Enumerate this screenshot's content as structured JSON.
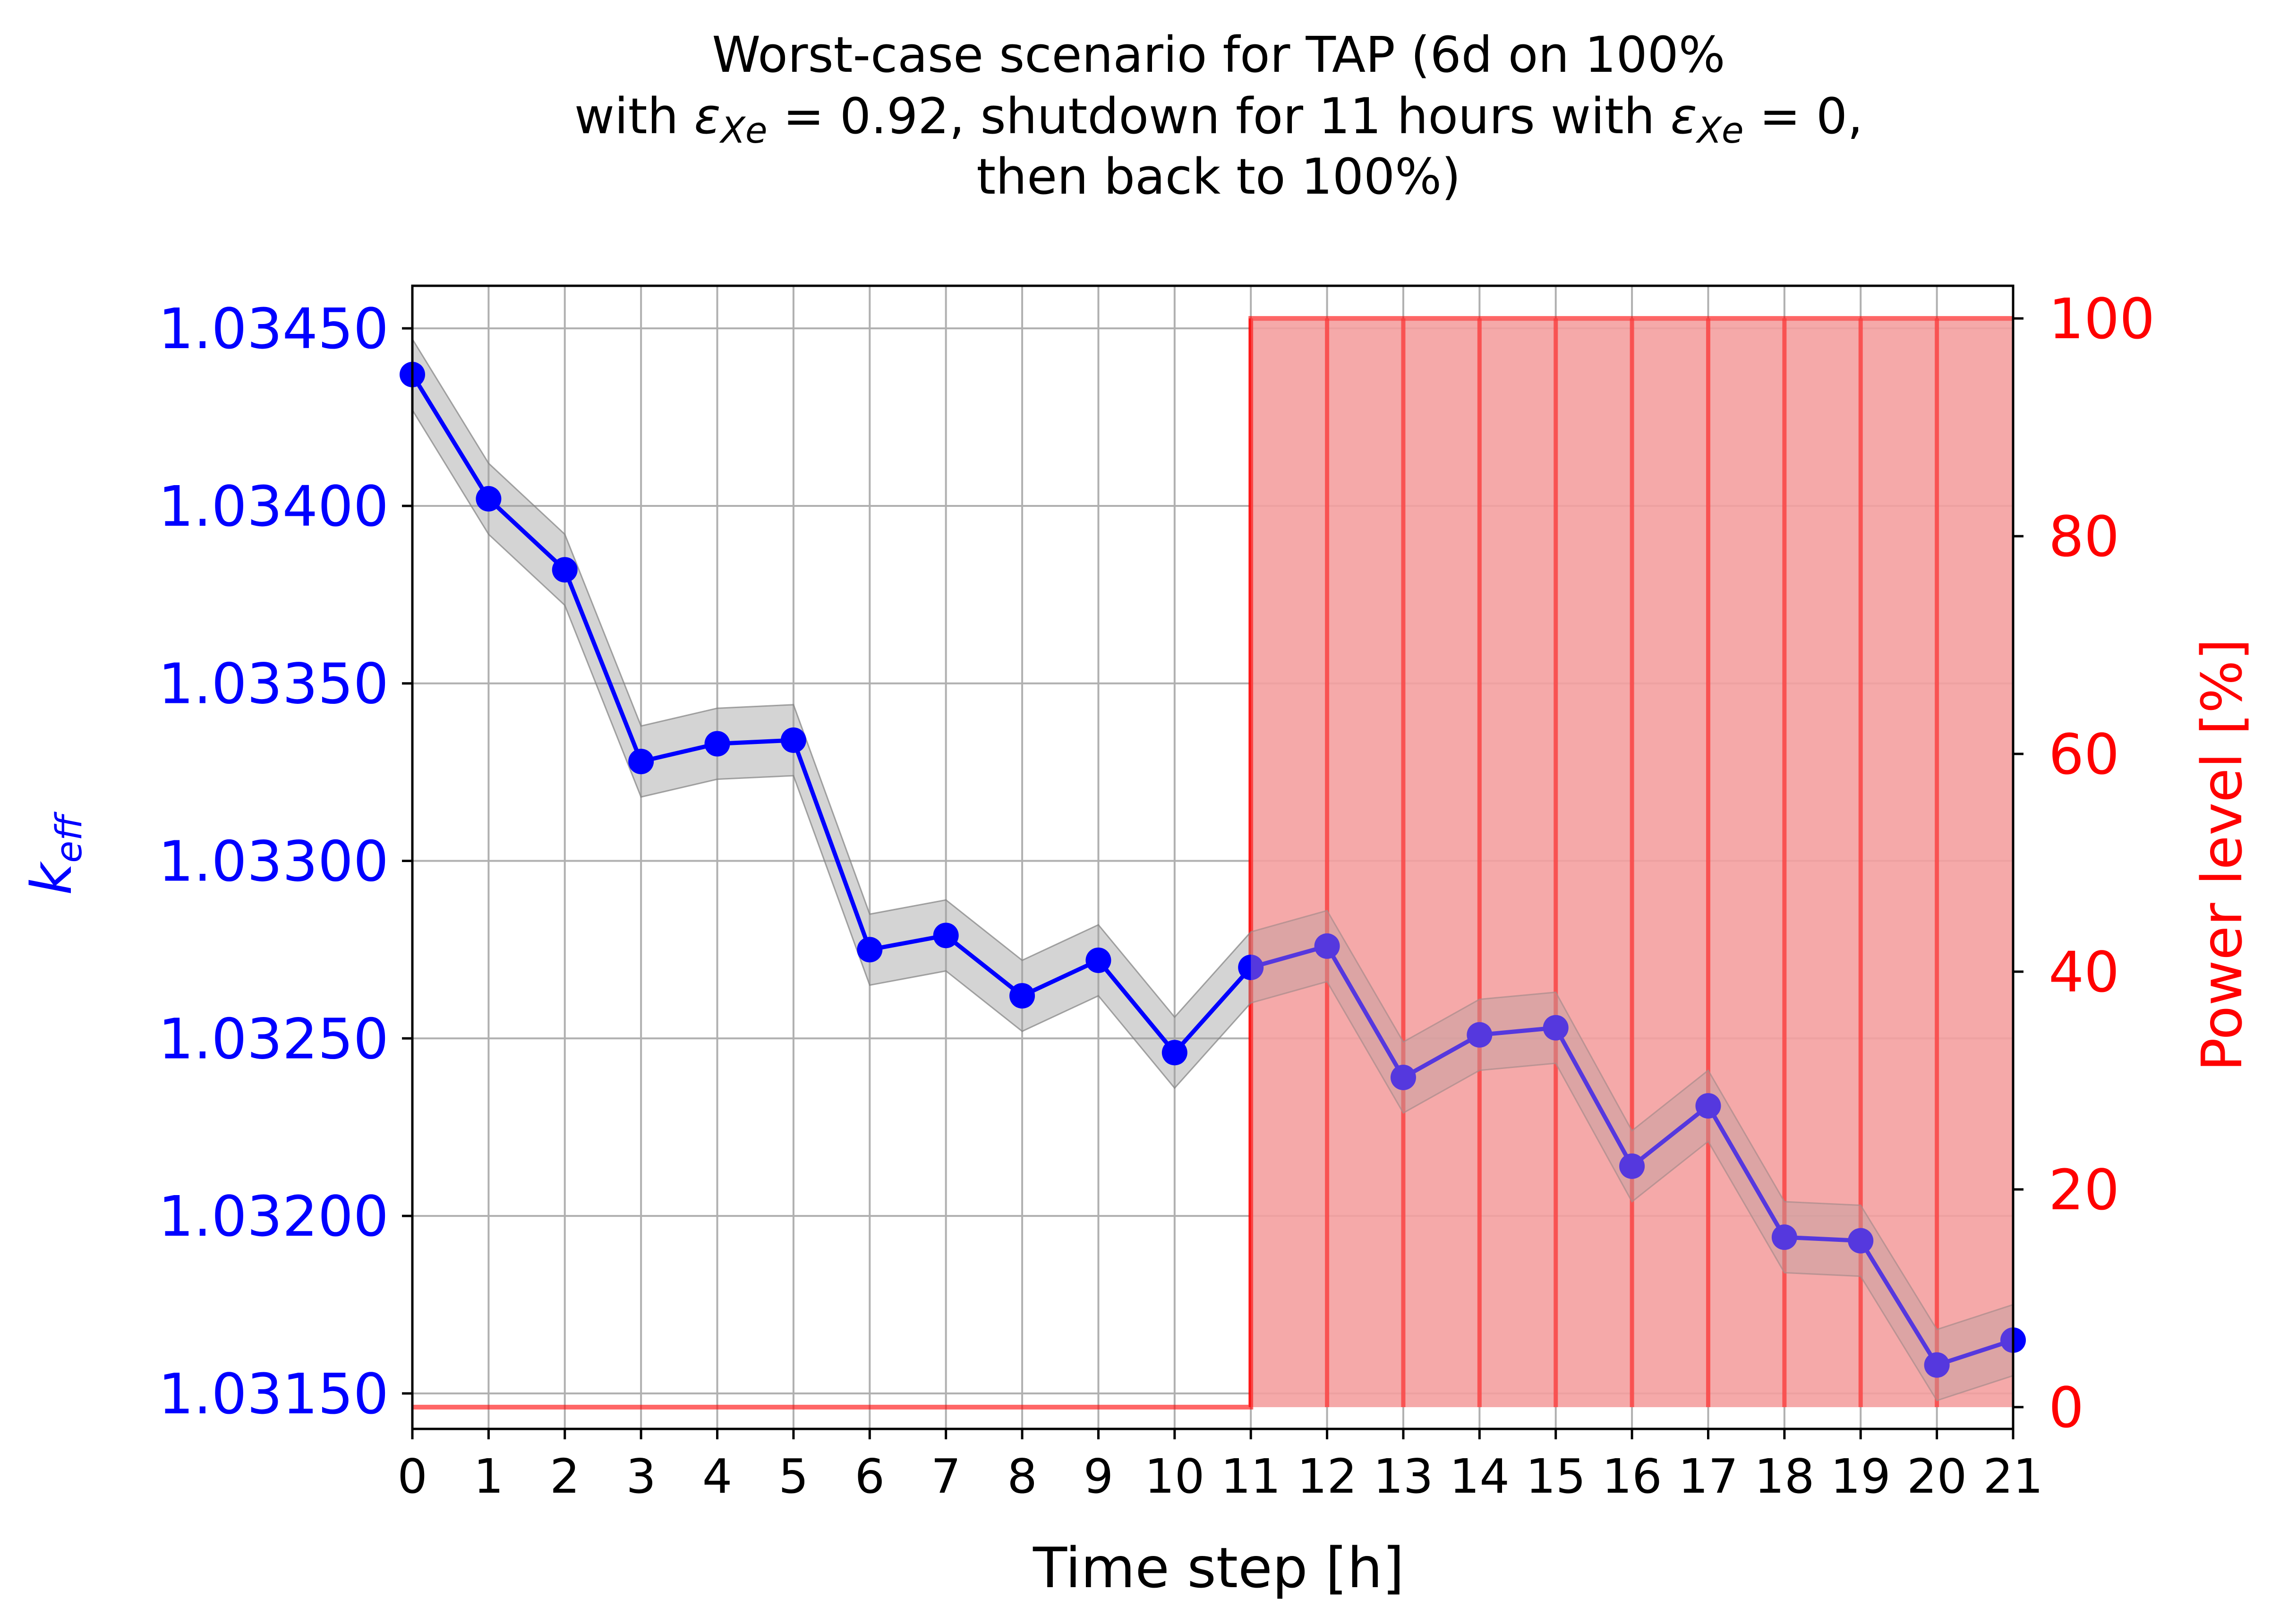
{
  "chart_data": {
    "type": "line",
    "title": {
      "line1": "Worst-case scenario for TAP (6d on 100%",
      "line2_prefix": "with ",
      "line2_eps1": "ε",
      "line2_sub1": "Xe",
      "line2_val1": " = 0.92, shutdown for 11 hours with ",
      "line2_eps2": "ε",
      "line2_sub2": "Xe",
      "line2_val2": " = 0,",
      "line3": "then back to 100%)"
    },
    "xlabel": "Time step [h]",
    "ylabel_left": {
      "main": "k",
      "sub": "eff"
    },
    "ylabel_right": "Power level [%]",
    "x": [
      0,
      1,
      2,
      3,
      4,
      5,
      6,
      7,
      8,
      9,
      10,
      11,
      12,
      13,
      14,
      15,
      16,
      17,
      18,
      19,
      20,
      21
    ],
    "xlim": [
      0,
      21
    ],
    "xticks": [
      "0",
      "1",
      "2",
      "3",
      "4",
      "5",
      "6",
      "7",
      "8",
      "9",
      "10",
      "11",
      "12",
      "13",
      "14",
      "15",
      "16",
      "17",
      "18",
      "19",
      "20",
      "21"
    ],
    "ylim_left": [
      1.0314,
      1.03462
    ],
    "yticks_left": [
      "1.03150",
      "1.03200",
      "1.03250",
      "1.03300",
      "1.03350",
      "1.03400",
      "1.03450"
    ],
    "ylim_right": [
      -2,
      103
    ],
    "yticks_right": [
      "0",
      "20",
      "40",
      "60",
      "80",
      "100"
    ],
    "grid": true,
    "series": [
      {
        "axis": "left",
        "color": "#0000ff",
        "band_color": "#a0a0a0",
        "values": [
          1.03437,
          1.03402,
          1.03382,
          1.03328,
          1.03333,
          1.03334,
          1.03275,
          1.03279,
          1.03262,
          1.03272,
          1.03246,
          1.0327,
          1.03276,
          1.03239,
          1.03251,
          1.03253,
          1.03214,
          1.03231,
          1.03194,
          1.03193,
          1.03158,
          1.03165
        ],
        "band_halfwidth": 0.0001
      },
      {
        "axis": "right",
        "type": "step",
        "color": "#ff0000",
        "fill_color": "#f4a0a0",
        "values": [
          0,
          0,
          0,
          0,
          0,
          0,
          0,
          0,
          0,
          0,
          0,
          0,
          100,
          100,
          100,
          100,
          100,
          100,
          100,
          100,
          100,
          100
        ]
      }
    ],
    "colors": {
      "left_axis": "#0000ff",
      "right_axis": "#ff0000",
      "grid": "#b0b0b0"
    }
  }
}
